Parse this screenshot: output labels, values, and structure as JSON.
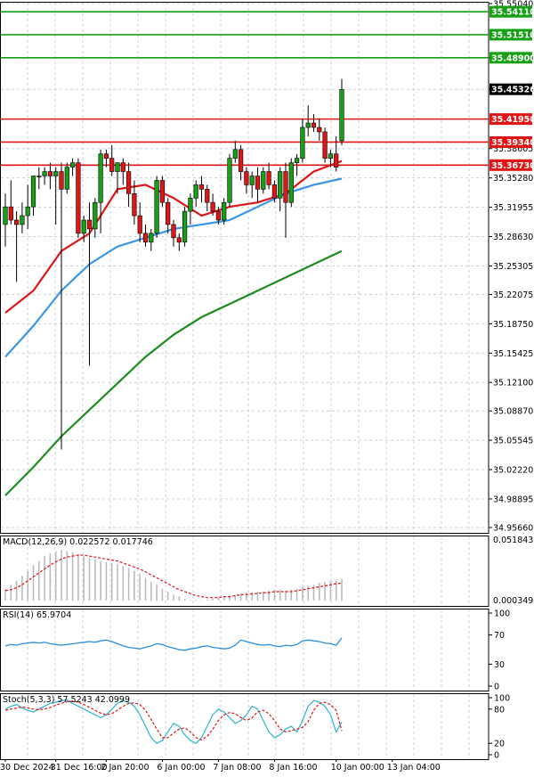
{
  "chart_data": {
    "type": "candlestick",
    "instrument_panel": {
      "y_ticks": [
        "35.55040",
        "35.48900",
        "35.45326",
        "35.38605",
        "35.35280",
        "35.31955",
        "35.28630",
        "35.25305",
        "35.22075",
        "35.18750",
        "35.15425",
        "35.12100",
        "35.08870",
        "35.05545",
        "35.02220",
        "34.98895",
        "34.95660"
      ],
      "ylim": [
        34.9566,
        35.5504
      ],
      "horizontal_levels": [
        {
          "value": 35.5411,
          "label": "35.54110",
          "color": "#15a015"
        },
        {
          "value": 35.5151,
          "label": "35.51510",
          "color": "#15a015"
        },
        {
          "value": 35.489,
          "label": "35.48900",
          "color": "#15a015"
        },
        {
          "value": 35.4195,
          "label": "35.41950",
          "color": "#e01515"
        },
        {
          "value": 35.3934,
          "label": "35.39340",
          "color": "#e01515"
        },
        {
          "value": 35.3673,
          "label": "35.36730",
          "color": "#e01515"
        }
      ],
      "current_price": {
        "value": 35.45326,
        "label": "35.45326"
      },
      "candles": [
        [
          35.3,
          35.335,
          35.275,
          35.32
        ],
        [
          35.32,
          35.35,
          35.3,
          35.305
        ],
        [
          35.305,
          35.315,
          35.235,
          35.3
        ],
        [
          35.3,
          35.325,
          35.29,
          35.31
        ],
        [
          35.31,
          35.345,
          35.295,
          35.32
        ],
        [
          35.32,
          35.355,
          35.31,
          35.355
        ],
        [
          35.355,
          35.365,
          35.34,
          35.355
        ],
        [
          35.355,
          35.365,
          35.345,
          35.36
        ],
        [
          35.36,
          35.37,
          35.34,
          35.355
        ],
        [
          35.355,
          35.365,
          35.3,
          35.36
        ],
        [
          35.36,
          35.37,
          35.045,
          35.34
        ],
        [
          35.34,
          35.37,
          35.335,
          35.365
        ],
        [
          35.365,
          35.375,
          35.355,
          35.37
        ],
        [
          35.37,
          35.375,
          35.285,
          35.29
        ],
        [
          35.29,
          35.31,
          35.28,
          35.305
        ],
        [
          35.305,
          35.325,
          35.14,
          35.295
        ],
        [
          35.295,
          35.33,
          35.285,
          35.325
        ],
        [
          35.325,
          35.385,
          35.29,
          35.38
        ],
        [
          35.38,
          35.385,
          35.365,
          35.375
        ],
        [
          35.375,
          35.39,
          35.355,
          35.36
        ],
        [
          35.36,
          35.37,
          35.335,
          35.37
        ],
        [
          35.37,
          35.375,
          35.345,
          35.36
        ],
        [
          35.36,
          35.37,
          35.32,
          35.335
        ],
        [
          35.335,
          35.35,
          35.3,
          35.31
        ],
        [
          35.31,
          35.325,
          35.28,
          35.29
        ],
        [
          35.29,
          35.3,
          35.275,
          35.28
        ],
        [
          35.28,
          35.295,
          35.27,
          35.29
        ],
        [
          35.29,
          35.355,
          35.285,
          35.35
        ],
        [
          35.35,
          35.355,
          35.32,
          35.325
        ],
        [
          35.325,
          35.33,
          35.29,
          35.3
        ],
        [
          35.3,
          35.305,
          35.275,
          35.285
        ],
        [
          35.285,
          35.29,
          35.27,
          35.28
        ],
        [
          35.28,
          35.32,
          35.275,
          35.315
        ],
        [
          35.315,
          35.335,
          35.3,
          35.33
        ],
        [
          35.33,
          35.35,
          35.32,
          35.345
        ],
        [
          35.345,
          35.355,
          35.325,
          35.34
        ],
        [
          35.34,
          35.345,
          35.315,
          35.325
        ],
        [
          35.325,
          35.335,
          35.31,
          35.315
        ],
        [
          35.315,
          35.32,
          35.3,
          35.305
        ],
        [
          35.305,
          35.33,
          35.3,
          35.325
        ],
        [
          35.325,
          35.38,
          35.32,
          35.375
        ],
        [
          35.375,
          35.395,
          35.37,
          35.385
        ],
        [
          35.385,
          35.39,
          35.35,
          35.36
        ],
        [
          35.36,
          35.365,
          35.335,
          35.345
        ],
        [
          35.345,
          35.36,
          35.33,
          35.355
        ],
        [
          35.355,
          35.365,
          35.325,
          35.34
        ],
        [
          35.34,
          35.365,
          35.335,
          35.36
        ],
        [
          35.36,
          35.37,
          35.34,
          35.345
        ],
        [
          35.345,
          35.35,
          35.325,
          35.33
        ],
        [
          35.33,
          35.365,
          35.315,
          35.36
        ],
        [
          35.36,
          35.37,
          35.285,
          35.325
        ],
        [
          35.325,
          35.375,
          35.32,
          35.37
        ],
        [
          35.37,
          35.38,
          35.355,
          35.375
        ],
        [
          35.375,
          35.42,
          35.37,
          35.41
        ],
        [
          35.41,
          35.435,
          35.4,
          35.415
        ],
        [
          35.415,
          35.425,
          35.405,
          35.41
        ],
        [
          35.41,
          35.42,
          35.395,
          35.405
        ],
        [
          35.405,
          35.41,
          35.37,
          35.375
        ],
        [
          35.375,
          35.385,
          35.365,
          35.38
        ],
        [
          35.38,
          35.4,
          35.36,
          35.365
        ],
        [
          35.395,
          35.465,
          35.39,
          35.453
        ]
      ],
      "moving_averages": [
        {
          "period": "20",
          "color": "#e01515",
          "points": [
            [
              0,
              35.2
            ],
            [
              5,
              35.225
            ],
            [
              10,
              35.27
            ],
            [
              15,
              35.29
            ],
            [
              20,
              35.34
            ],
            [
              25,
              35.345
            ],
            [
              30,
              35.33
            ],
            [
              35,
              35.31
            ],
            [
              40,
              35.32
            ],
            [
              45,
              35.325
            ],
            [
              50,
              35.335
            ],
            [
              55,
              35.36
            ],
            [
              60,
              35.372
            ]
          ]
        },
        {
          "period": "50",
          "color": "#3a96e6",
          "points": [
            [
              0,
              35.15
            ],
            [
              5,
              35.185
            ],
            [
              10,
              35.225
            ],
            [
              15,
              35.255
            ],
            [
              20,
              35.275
            ],
            [
              25,
              35.285
            ],
            [
              30,
              35.295
            ],
            [
              35,
              35.3
            ],
            [
              40,
              35.305
            ],
            [
              45,
              35.32
            ],
            [
              50,
              35.335
            ],
            [
              55,
              35.345
            ],
            [
              60,
              35.352
            ]
          ]
        },
        {
          "period": "200",
          "color": "#1e8c1e",
          "points": [
            [
              0,
              34.993
            ],
            [
              5,
              35.025
            ],
            [
              10,
              35.06
            ],
            [
              15,
              35.09
            ],
            [
              20,
              35.12
            ],
            [
              25,
              35.15
            ],
            [
              30,
              35.175
            ],
            [
              35,
              35.195
            ],
            [
              40,
              35.21
            ],
            [
              45,
              35.225
            ],
            [
              50,
              35.24
            ],
            [
              55,
              35.255
            ],
            [
              60,
              35.27
            ]
          ]
        }
      ]
    },
    "macd_panel": {
      "label": "MACD(12,26,9) 0.022572 0.017746",
      "y_ticks": [
        "0.051843",
        "0.000349"
      ],
      "ylim": [
        0.0,
        0.055
      ],
      "histogram": [
        0.012,
        0.016,
        0.02,
        0.025,
        0.03,
        0.036,
        0.04,
        0.045,
        0.048,
        0.05,
        0.051,
        0.05,
        0.049,
        0.047,
        0.045,
        0.043,
        0.042,
        0.04,
        0.039,
        0.038,
        0.037,
        0.035,
        0.033,
        0.03,
        0.027,
        0.023,
        0.019,
        0.016,
        0.012,
        0.009,
        0.006,
        0.004,
        0.002,
        0.001,
        0.0008,
        0.0005,
        0.001,
        0.002,
        0.003,
        0.004,
        0.005,
        0.006,
        0.007,
        0.008,
        0.008,
        0.009,
        0.009,
        0.01,
        0.011,
        0.011,
        0.01,
        0.011,
        0.012,
        0.014,
        0.015,
        0.016,
        0.018,
        0.019,
        0.02,
        0.021,
        0.022
      ],
      "signal": [
        0.01,
        0.011,
        0.013,
        0.016,
        0.02,
        0.024,
        0.028,
        0.032,
        0.036,
        0.039,
        0.042,
        0.044,
        0.045,
        0.046,
        0.046,
        0.045,
        0.044,
        0.043,
        0.042,
        0.041,
        0.04,
        0.038,
        0.036,
        0.034,
        0.032,
        0.029,
        0.026,
        0.023,
        0.02,
        0.017,
        0.014,
        0.011,
        0.009,
        0.007,
        0.005,
        0.004,
        0.003,
        0.003,
        0.003,
        0.004,
        0.004,
        0.005,
        0.006,
        0.006,
        0.007,
        0.007,
        0.008,
        0.008,
        0.009,
        0.009,
        0.009,
        0.009,
        0.01,
        0.011,
        0.012,
        0.013,
        0.014,
        0.015,
        0.016,
        0.017,
        0.0177
      ]
    },
    "rsi_panel": {
      "label": "RSI(14) 65.9704",
      "y_ticks": [
        "100",
        "70",
        "30",
        "0"
      ],
      "ylim": [
        0,
        100
      ],
      "values": [
        55,
        57,
        56,
        58,
        59,
        60,
        59,
        60,
        58,
        57,
        56,
        57,
        58,
        59,
        60,
        61,
        60,
        62,
        63,
        61,
        58,
        55,
        53,
        52,
        51,
        53,
        55,
        58,
        57,
        54,
        52,
        50,
        49,
        51,
        52,
        54,
        55,
        53,
        52,
        51,
        52,
        56,
        63,
        61,
        59,
        57,
        56,
        57,
        55,
        54,
        56,
        55,
        57,
        62,
        63,
        62,
        61,
        59,
        58,
        56,
        65.97
      ]
    },
    "stoch_panel": {
      "label": "Stoch(5,3,3) 57.5243 42.0999",
      "y_ticks": [
        "100",
        "80",
        "20",
        "0"
      ],
      "ylim": [
        0,
        100
      ],
      "k": [
        80,
        85,
        88,
        82,
        78,
        75,
        80,
        85,
        90,
        92,
        95,
        96,
        90,
        85,
        80,
        75,
        70,
        65,
        70,
        80,
        90,
        95,
        92,
        85,
        70,
        50,
        30,
        20,
        25,
        40,
        55,
        50,
        35,
        25,
        20,
        30,
        50,
        70,
        80,
        75,
        65,
        55,
        60,
        70,
        85,
        80,
        60,
        40,
        30,
        35,
        45,
        50,
        40,
        60,
        85,
        95,
        92,
        85,
        70,
        40,
        57.5
      ],
      "d": [
        78,
        80,
        82,
        84,
        82,
        80,
        79,
        80,
        83,
        87,
        90,
        93,
        94,
        92,
        88,
        83,
        78,
        73,
        70,
        72,
        78,
        85,
        90,
        91,
        88,
        78,
        62,
        45,
        30,
        30,
        38,
        45,
        47,
        40,
        30,
        26,
        32,
        45,
        60,
        70,
        74,
        72,
        65,
        60,
        65,
        75,
        78,
        72,
        60,
        45,
        40,
        42,
        45,
        48,
        58,
        78,
        90,
        92,
        88,
        78,
        42.1
      ]
    },
    "x_tick_labels": [
      {
        "index": 0,
        "label": "30 Dec 2024"
      },
      {
        "index": 9,
        "label": "31 Dec 16:00"
      },
      {
        "index": 18,
        "label": "2 Jan 20:00"
      },
      {
        "index": 28,
        "label": "6 Jan 00:00"
      },
      {
        "index": 38,
        "label": "7 Jan 08:00"
      },
      {
        "index": 48,
        "label": "8 Jan 16:00"
      },
      {
        "index": 59,
        "label": "10 Jan 00:00"
      },
      {
        "index": 69,
        "label": "13 Jan 04:00"
      }
    ],
    "colors": {
      "up": "#17a017",
      "down": "#e01515",
      "grid": "#c8d0dc",
      "macd_hist": "#bcbcbc",
      "macd_signal": "#e01515",
      "rsi_line": "#2a8fe0",
      "stoch_k": "#38b8cf",
      "stoch_d": "#e01515",
      "current_tag": "#000000"
    }
  }
}
